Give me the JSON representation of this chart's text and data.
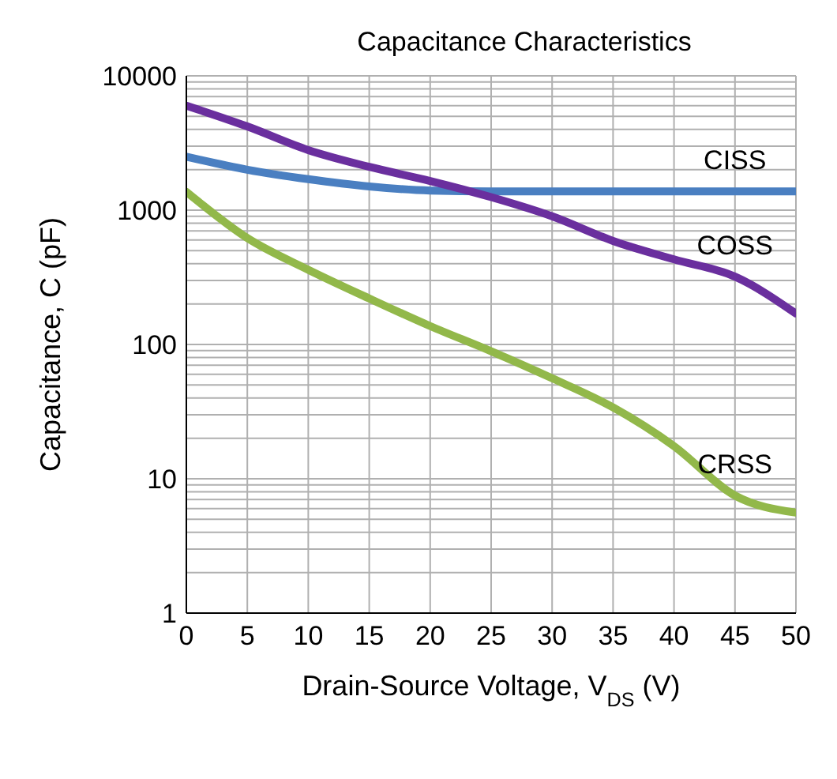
{
  "chart_data": {
    "type": "line",
    "title": "Capacitance Characteristics",
    "xlabel": "Drain-Source Voltage, V$_{DS}$ (V)",
    "ylabel": "Capacitance, C (pF)",
    "x": [
      0,
      5,
      10,
      15,
      20,
      25,
      30,
      35,
      40,
      45,
      50
    ],
    "series": [
      {
        "name": "CISS",
        "color": "#4a7fc1",
        "values": [
          2500,
          2000,
          1700,
          1500,
          1400,
          1380,
          1380,
          1380,
          1380,
          1380,
          1380
        ]
      },
      {
        "name": "COSS",
        "color": "#6a2f9e",
        "values": [
          6000,
          4200,
          2800,
          2100,
          1650,
          1250,
          900,
          590,
          430,
          320,
          170
        ]
      },
      {
        "name": "CRSS",
        "color": "#92b84a",
        "values": [
          1370,
          620,
          360,
          220,
          137,
          89,
          56,
          34,
          17.5,
          7.5,
          5.6
        ]
      }
    ],
    "log": "y",
    "xlim": [
      0,
      50
    ],
    "xticks": [
      0,
      5,
      10,
      15,
      20,
      25,
      30,
      35,
      40,
      45,
      50
    ],
    "ylim": [
      1,
      10000
    ],
    "yticks": [
      1,
      {
        "value": 2,
        "label": null
      },
      {
        "value": 3,
        "label": null
      },
      {
        "value": 4,
        "label": null
      },
      {
        "value": 5,
        "label": null
      },
      {
        "value": 6,
        "label": null
      },
      {
        "value": 7,
        "label": null
      },
      {
        "value": 8,
        "label": null
      },
      {
        "value": 9,
        "label": null
      },
      10,
      {
        "value": 20,
        "label": null
      },
      {
        "value": 30,
        "label": null
      },
      {
        "value": 40,
        "label": null
      },
      {
        "value": 50,
        "label": null
      },
      {
        "value": 60,
        "label": null
      },
      {
        "value": 70,
        "label": null
      },
      {
        "value": 80,
        "label": null
      },
      {
        "value": 90,
        "label": null
      },
      100,
      {
        "value": 200,
        "label": null
      },
      {
        "value": 300,
        "label": null
      },
      {
        "value": 400,
        "label": null
      },
      {
        "value": 500,
        "label": null
      },
      {
        "value": 600,
        "label": null
      },
      {
        "value": 700,
        "label": null
      },
      {
        "value": 800,
        "label": null
      },
      {
        "value": 900,
        "label": null
      },
      1000,
      {
        "value": 2000,
        "label": null
      },
      {
        "value": 3000,
        "label": null
      },
      {
        "value": 4000,
        "label": null
      },
      {
        "value": 5000,
        "label": null
      },
      {
        "value": 6000,
        "label": null
      },
      {
        "value": 7000,
        "label": null
      },
      {
        "value": 8000,
        "label": null
      },
      {
        "value": 9000,
        "label": null
      },
      10000
    ],
    "grid": true,
    "marker": "none",
    "line_style": "solid",
    "legend": false
  }
}
